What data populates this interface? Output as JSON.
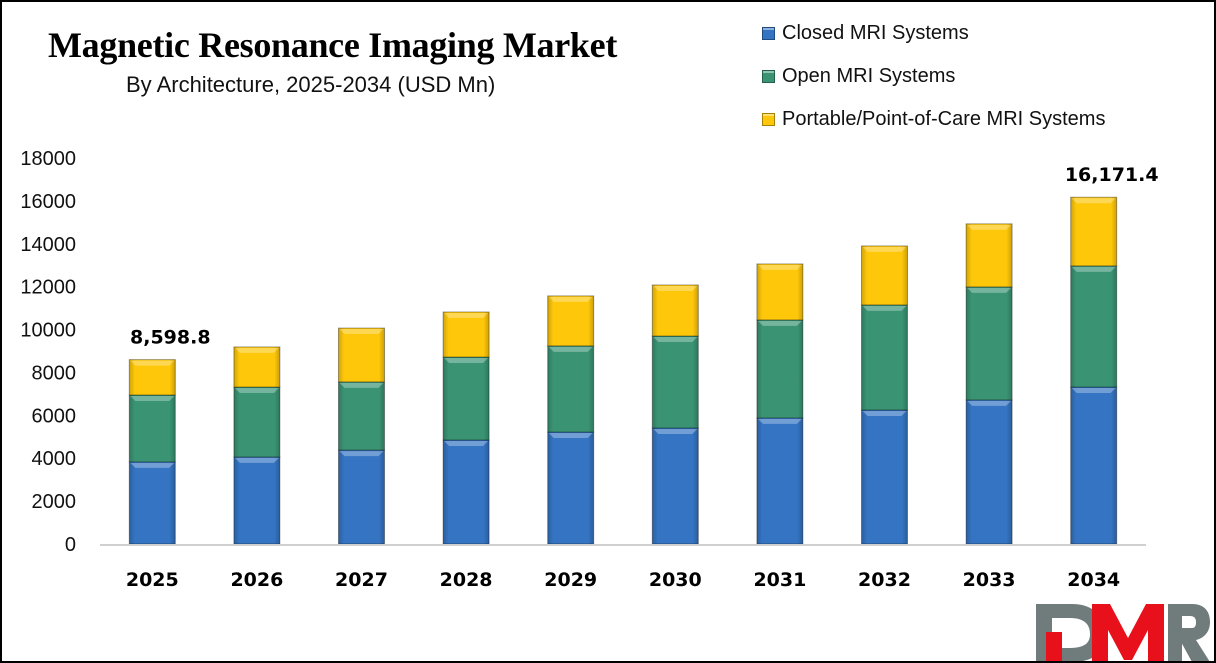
{
  "chart_data": {
    "type": "bar",
    "stacked": true,
    "title": "Magnetic Resonance Imaging Market",
    "subtitle": "By Architecture, 2025-2034 (USD Mn)",
    "xlabel": "",
    "ylabel": "",
    "ylim": [
      0,
      18000
    ],
    "yticks": [
      0,
      2000,
      4000,
      6000,
      8000,
      10000,
      12000,
      14000,
      16000,
      18000
    ],
    "grid": false,
    "legend_position": "top-right",
    "categories": [
      "2025",
      "2026",
      "2027",
      "2028",
      "2029",
      "2030",
      "2031",
      "2032",
      "2033",
      "2034"
    ],
    "series": [
      {
        "name": "Closed MRI Systems",
        "color": "#3474c2",
        "values": [
          3830,
          4060,
          4380,
          4850,
          5220,
          5410,
          5880,
          6250,
          6720,
          7320
        ]
      },
      {
        "name": "Open MRI Systems",
        "color": "#3a9474",
        "values": [
          3120,
          3260,
          3180,
          3870,
          4020,
          4290,
          4570,
          4900,
          5270,
          5650
        ]
      },
      {
        "name": "Portable/Point-of-Care MRI Systems",
        "color": "#fec70a",
        "values": [
          1648.8,
          1870,
          2510,
          2100,
          2330,
          2380,
          2610,
          2750,
          2940,
          3201.4
        ]
      }
    ],
    "totals": [
      8598.8,
      9190,
      10070,
      10820,
      11570,
      12080,
      13060,
      13900,
      14930,
      16171.4
    ],
    "annotations": [
      {
        "category": "2025",
        "text": "8,598.8"
      },
      {
        "category": "2034",
        "text": "16,171.4"
      }
    ]
  },
  "branding": {
    "logo_text": "DMR",
    "logo_colors": {
      "gray": "#707b7b",
      "red": "#e8101a"
    }
  }
}
